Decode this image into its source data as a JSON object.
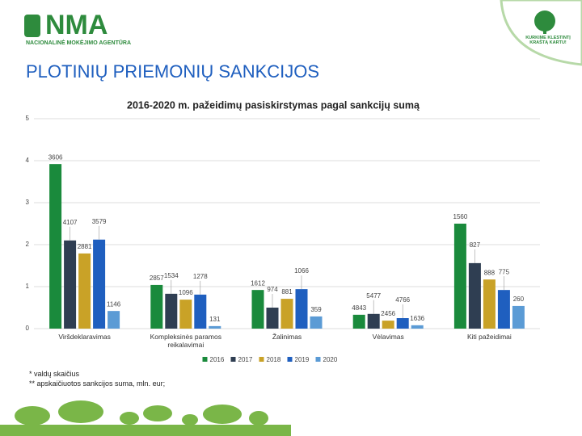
{
  "header": {
    "logo": "NMA",
    "agency": "NACIONALINĖ MOKĖJIMO AGENTŪRA",
    "motto": "KURKIME KLESTINTĮ KRAŠTĄ KARTU!"
  },
  "heading": "PLOTINIŲ PRIEMONIŲ SANKCIJOS",
  "chart_data": {
    "type": "bar",
    "title": "2016-2020 m. pažeidimų pasiskirstymas pagal sankcijų sumą",
    "categories": [
      "Viršdeklaravimas",
      "Kompleksinės paramos reikalavimai",
      "Žalinimas",
      "Vėlavimas",
      "Kiti pažeidimai"
    ],
    "series": [
      {
        "name": "2016",
        "color": "#1a8a3c",
        "values": [
          3.92,
          1.04,
          0.92,
          0.33,
          2.5
        ],
        "value_labels": [
          "3606",
          "2857",
          "1612",
          "4843",
          "1560"
        ]
      },
      {
        "name": "2017",
        "color": "#2f3e52",
        "values": [
          2.1,
          0.83,
          0.5,
          0.35,
          1.56
        ],
        "value_labels": [
          "4107",
          "1534",
          "974",
          "5477",
          "827"
        ]
      },
      {
        "name": "2018",
        "color": "#c9a227",
        "values": [
          1.79,
          0.69,
          0.71,
          0.19,
          1.17
        ],
        "value_labels": [
          "2881",
          "1096",
          "881",
          "2456",
          "888"
        ]
      },
      {
        "name": "2019",
        "color": "#1f5fbf",
        "values": [
          2.12,
          0.81,
          0.94,
          0.25,
          0.92
        ],
        "value_labels": [
          "3579",
          "1278",
          "1066",
          "4766",
          "775"
        ]
      },
      {
        "name": "2020",
        "color": "#5b9bd5",
        "values": [
          0.42,
          0.06,
          0.29,
          0.08,
          0.54
        ],
        "value_labels": [
          "1146",
          "131",
          "359",
          "1636",
          "260"
        ]
      }
    ],
    "ylim": [
      0,
      5
    ],
    "yticks": [
      0,
      1,
      2,
      3,
      4,
      5
    ],
    "grid": true,
    "legend": "bottom"
  },
  "footnotes": [
    "* valdų skaičius",
    "** apskaičiuotos sankcijos suma, mln. eur;"
  ]
}
